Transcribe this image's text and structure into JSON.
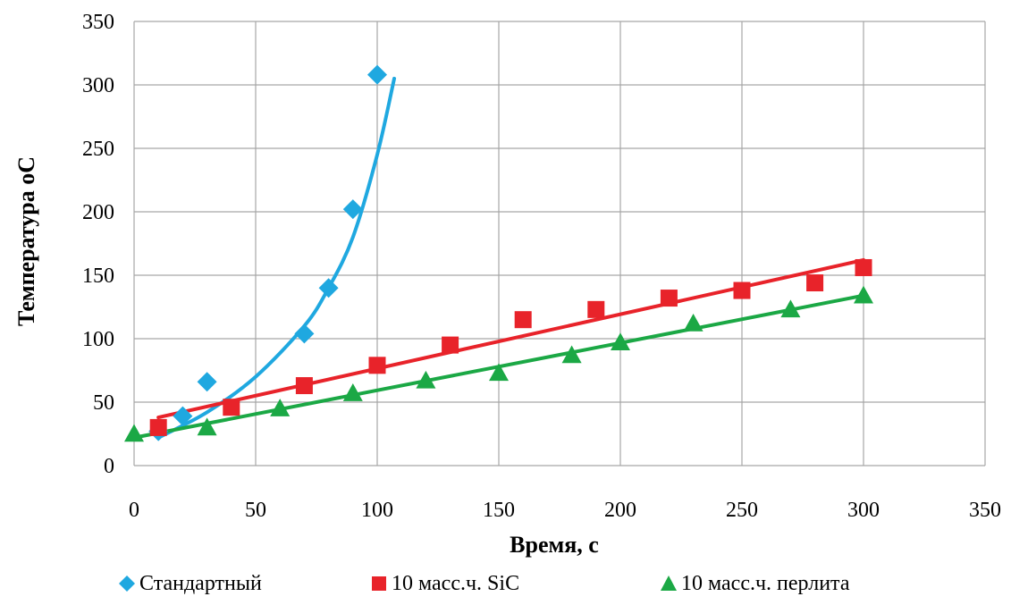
{
  "chart_data": {
    "type": "scatter",
    "xlabel": "Время, с",
    "ylabel": "Температура оС",
    "xlim": [
      0,
      350
    ],
    "ylim": [
      0,
      350
    ],
    "xticks": [
      0,
      50,
      100,
      150,
      200,
      250,
      300,
      350
    ],
    "yticks": [
      0,
      50,
      100,
      150,
      200,
      250,
      300,
      350
    ],
    "grid": true,
    "legend_position": "bottom",
    "series": [
      {
        "name": "Стандартный",
        "marker": "diamond",
        "color": "#1FA8E0",
        "points": [
          [
            10,
            27
          ],
          [
            20,
            39
          ],
          [
            30,
            66
          ],
          [
            70,
            104
          ],
          [
            80,
            140
          ],
          [
            90,
            202
          ],
          [
            100,
            308
          ]
        ],
        "trend": {
          "kind": "curve",
          "points": [
            [
              10,
              22
            ],
            [
              30,
              42
            ],
            [
              50,
              70
            ],
            [
              70,
              110
            ],
            [
              80,
              140
            ],
            [
              90,
              180
            ],
            [
              100,
              245
            ],
            [
              107,
              305
            ]
          ]
        }
      },
      {
        "name": "10 масс.ч. SiC",
        "marker": "square",
        "color": "#E8232A",
        "points": [
          [
            10,
            30
          ],
          [
            40,
            46
          ],
          [
            70,
            63
          ],
          [
            100,
            79
          ],
          [
            130,
            95
          ],
          [
            160,
            115
          ],
          [
            190,
            123
          ],
          [
            220,
            132
          ],
          [
            250,
            138
          ],
          [
            280,
            144
          ],
          [
            300,
            156
          ]
        ],
        "trend": {
          "kind": "line",
          "points": [
            [
              10,
              38
            ],
            [
              300,
              162
            ]
          ]
        }
      },
      {
        "name": "10 масс.ч. перлита",
        "marker": "triangle",
        "color": "#1BA845",
        "points": [
          [
            0,
            25
          ],
          [
            30,
            30
          ],
          [
            60,
            45
          ],
          [
            90,
            57
          ],
          [
            120,
            67
          ],
          [
            150,
            73
          ],
          [
            180,
            87
          ],
          [
            200,
            97
          ],
          [
            230,
            112
          ],
          [
            270,
            123
          ],
          [
            300,
            134
          ]
        ],
        "trend": {
          "kind": "line",
          "points": [
            [
              0,
              22
            ],
            [
              300,
              134
            ]
          ]
        }
      }
    ]
  }
}
